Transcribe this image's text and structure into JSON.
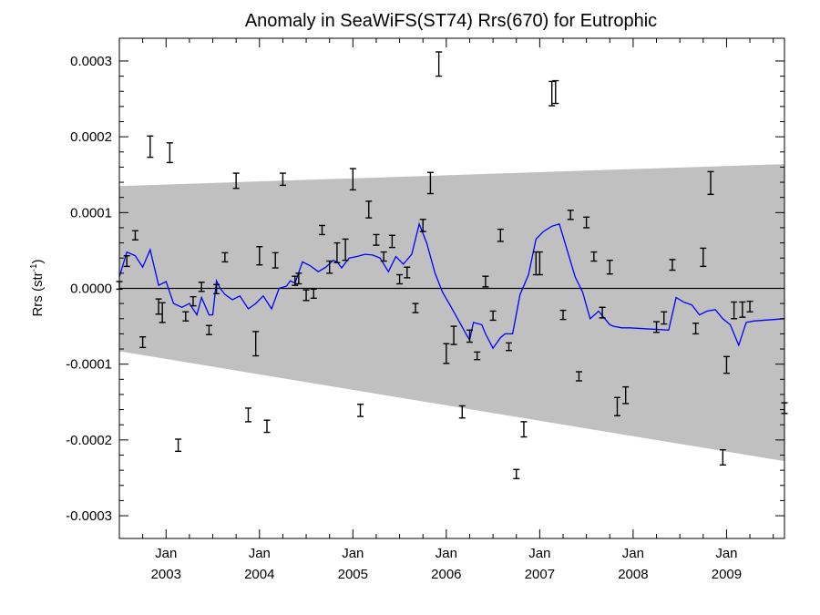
{
  "chart_data": {
    "type": "scatter",
    "title": "Anomaly in SeaWiFS(ST74) Rrs(670) for Eutrophic",
    "ylabel_main": "Rrs (str",
    "ylabel_sup": "-1",
    "ylabel_end": ")",
    "xlim": [
      2002.5,
      2009.62
    ],
    "ylim": [
      -0.00033,
      0.00033
    ],
    "yticks": [
      {
        "value": 0.0003,
        "label": "0.0003"
      },
      {
        "value": 0.0002,
        "label": "0.0002"
      },
      {
        "value": 0.0001,
        "label": "0.0001"
      },
      {
        "value": 0.0,
        "label": "0.0000"
      },
      {
        "value": -0.0001,
        "label": "-0.0001"
      },
      {
        "value": -0.0002,
        "label": "-0.0002"
      },
      {
        "value": -0.0003,
        "label": "-0.0003"
      }
    ],
    "xticks": [
      {
        "value": 2003.0,
        "month": "Jan",
        "year": "2003"
      },
      {
        "value": 2004.0,
        "month": "Jan",
        "year": "2004"
      },
      {
        "value": 2005.0,
        "month": "Jan",
        "year": "2005"
      },
      {
        "value": 2006.0,
        "month": "Jan",
        "year": "2006"
      },
      {
        "value": 2007.0,
        "month": "Jan",
        "year": "2007"
      },
      {
        "value": 2008.0,
        "month": "Jan",
        "year": "2008"
      },
      {
        "value": 2009.0,
        "month": "Jan",
        "year": "2009"
      }
    ],
    "grid": false,
    "colors": {
      "band": "#c0c0c0",
      "line": "#0000ff",
      "points": "#000000",
      "zero_line": "#000000"
    },
    "band": {
      "x": [
        2002.5,
        2009.62
      ],
      "upper": [
        0.000135,
        0.000164
      ],
      "lower": [
        -8.3e-05,
        -0.000228
      ]
    },
    "points": [
      {
        "x": 2002.5,
        "y": 4e-06,
        "err": 5e-06
      },
      {
        "x": 2002.58,
        "y": 3.6e-05,
        "err": 7e-06
      },
      {
        "x": 2002.67,
        "y": 7e-05,
        "err": 6e-06
      },
      {
        "x": 2002.75,
        "y": -7.1e-05,
        "err": 7e-06
      },
      {
        "x": 2002.83,
        "y": 0.000187,
        "err": 1.4e-05
      },
      {
        "x": 2002.92,
        "y": -2.4e-05,
        "err": 1e-05
      },
      {
        "x": 2002.96,
        "y": -3.2e-05,
        "err": 1.3e-05
      },
      {
        "x": 2003.04,
        "y": 0.000179,
        "err": 1.3e-05
      },
      {
        "x": 2003.13,
        "y": -0.000207,
        "err": 8e-06
      },
      {
        "x": 2003.21,
        "y": -3.7e-05,
        "err": 6e-06
      },
      {
        "x": 2003.29,
        "y": -1.7e-05,
        "err": 6e-06
      },
      {
        "x": 2003.38,
        "y": 2e-06,
        "err": 6e-06
      },
      {
        "x": 2003.46,
        "y": -5.5e-05,
        "err": 6e-06
      },
      {
        "x": 2003.54,
        "y": -1e-06,
        "err": 6e-06
      },
      {
        "x": 2003.63,
        "y": 4.1e-05,
        "err": 6e-06
      },
      {
        "x": 2003.75,
        "y": 0.000142,
        "err": 1e-05
      },
      {
        "x": 2003.88,
        "y": -0.000167,
        "err": 9e-06
      },
      {
        "x": 2003.96,
        "y": -7.3e-05,
        "err": 1.6e-05
      },
      {
        "x": 2004.0,
        "y": 4.3e-05,
        "err": 1.2e-05
      },
      {
        "x": 2004.08,
        "y": -0.000182,
        "err": 8e-06
      },
      {
        "x": 2004.17,
        "y": 3.7e-05,
        "err": 1e-05
      },
      {
        "x": 2004.25,
        "y": 0.000144,
        "err": 8e-06
      },
      {
        "x": 2004.38,
        "y": 1e-05,
        "err": 6e-06
      },
      {
        "x": 2004.42,
        "y": 1.3e-05,
        "err": 7e-06
      },
      {
        "x": 2004.5,
        "y": -9e-06,
        "err": 7e-06
      },
      {
        "x": 2004.58,
        "y": -7e-06,
        "err": 6e-06
      },
      {
        "x": 2004.67,
        "y": 7.7e-05,
        "err": 6e-06
      },
      {
        "x": 2004.75,
        "y": 2.8e-05,
        "err": 8e-06
      },
      {
        "x": 2004.83,
        "y": 4.7e-05,
        "err": 1.3e-05
      },
      {
        "x": 2004.92,
        "y": 5.1e-05,
        "err": 1.4e-05
      },
      {
        "x": 2005.0,
        "y": 0.000144,
        "err": 1.4e-05
      },
      {
        "x": 2005.08,
        "y": -0.000161,
        "err": 8e-06
      },
      {
        "x": 2005.17,
        "y": 0.000104,
        "err": 1.1e-05
      },
      {
        "x": 2005.25,
        "y": 6.4e-05,
        "err": 7e-06
      },
      {
        "x": 2005.33,
        "y": 4.2e-05,
        "err": 6e-06
      },
      {
        "x": 2005.42,
        "y": 6.2e-05,
        "err": 8e-06
      },
      {
        "x": 2005.5,
        "y": 1.2e-05,
        "err": 6e-06
      },
      {
        "x": 2005.58,
        "y": 2.1e-05,
        "err": 7e-06
      },
      {
        "x": 2005.67,
        "y": -2.6e-05,
        "err": 6e-06
      },
      {
        "x": 2005.75,
        "y": 8.3e-05,
        "err": 8e-06
      },
      {
        "x": 2005.83,
        "y": 0.000139,
        "err": 1.4e-05
      },
      {
        "x": 2005.92,
        "y": 0.000296,
        "err": 1.6e-05
      },
      {
        "x": 2006.0,
        "y": -8.6e-05,
        "err": 1.3e-05
      },
      {
        "x": 2006.08,
        "y": -6.2e-05,
        "err": 1.2e-05
      },
      {
        "x": 2006.17,
        "y": -0.000163,
        "err": 8e-06
      },
      {
        "x": 2006.25,
        "y": -6.3e-05,
        "err": 8e-06
      },
      {
        "x": 2006.33,
        "y": -8.9e-05,
        "err": 5e-06
      },
      {
        "x": 2006.42,
        "y": 9e-06,
        "err": 7e-06
      },
      {
        "x": 2006.5,
        "y": -3.6e-05,
        "err": 6e-06
      },
      {
        "x": 2006.58,
        "y": 7e-05,
        "err": 8e-06
      },
      {
        "x": 2006.67,
        "y": -7.7e-05,
        "err": 5e-06
      },
      {
        "x": 2006.75,
        "y": -0.000245,
        "err": 6e-06
      },
      {
        "x": 2006.83,
        "y": -0.000186,
        "err": 1e-05
      },
      {
        "x": 2006.96,
        "y": 3.3e-05,
        "err": 1.5e-05
      },
      {
        "x": 2007.0,
        "y": 3.3e-05,
        "err": 1.5e-05
      },
      {
        "x": 2007.13,
        "y": 0.000257,
        "err": 1.6e-05
      },
      {
        "x": 2007.17,
        "y": 0.000259,
        "err": 1.5e-05
      },
      {
        "x": 2007.25,
        "y": -3.5e-05,
        "err": 6e-06
      },
      {
        "x": 2007.33,
        "y": 9.7e-05,
        "err": 6e-06
      },
      {
        "x": 2007.42,
        "y": -0.000116,
        "err": 6e-06
      },
      {
        "x": 2007.5,
        "y": 8.7e-05,
        "err": 7e-06
      },
      {
        "x": 2007.58,
        "y": 4.2e-05,
        "err": 6e-06
      },
      {
        "x": 2007.67,
        "y": -3.2e-05,
        "err": 7e-06
      },
      {
        "x": 2007.75,
        "y": 2.8e-05,
        "err": 9e-06
      },
      {
        "x": 2007.83,
        "y": -0.000156,
        "err": 1.2e-05
      },
      {
        "x": 2007.92,
        "y": -0.000141,
        "err": 1.1e-05
      },
      {
        "x": 2008.25,
        "y": -5.1e-05,
        "err": 7e-06
      },
      {
        "x": 2008.33,
        "y": -3.9e-05,
        "err": 8e-06
      },
      {
        "x": 2008.42,
        "y": 3.1e-05,
        "err": 7e-06
      },
      {
        "x": 2008.67,
        "y": -5.3e-05,
        "err": 7e-06
      },
      {
        "x": 2008.75,
        "y": 4.1e-05,
        "err": 1.2e-05
      },
      {
        "x": 2008.83,
        "y": 0.000139,
        "err": 1.5e-05
      },
      {
        "x": 2008.96,
        "y": -0.000223,
        "err": 1e-05
      },
      {
        "x": 2009.0,
        "y": -0.000101,
        "err": 1.1e-05
      },
      {
        "x": 2009.08,
        "y": -2.9e-05,
        "err": 1.1e-05
      },
      {
        "x": 2009.17,
        "y": -2.8e-05,
        "err": 1e-05
      },
      {
        "x": 2009.25,
        "y": -2.4e-05,
        "err": 7e-06
      },
      {
        "x": 2009.62,
        "y": -0.000158,
        "err": 7e-06
      }
    ],
    "line": {
      "x": [
        2002.5,
        2002.58,
        2002.67,
        2002.75,
        2002.83,
        2002.92,
        2003.0,
        2003.08,
        2003.17,
        2003.25,
        2003.33,
        2003.38,
        2003.46,
        2003.5,
        2003.54,
        2003.58,
        2003.63,
        2003.71,
        2003.79,
        2003.88,
        2003.96,
        2004.04,
        2004.13,
        2004.21,
        2004.29,
        2004.33,
        2004.38,
        2004.46,
        2004.54,
        2004.63,
        2004.71,
        2004.79,
        2004.83,
        2004.88,
        2004.96,
        2005.04,
        2005.13,
        2005.21,
        2005.29,
        2005.38,
        2005.46,
        2005.54,
        2005.63,
        2005.71,
        2005.79,
        2005.88,
        2005.96,
        2006.04,
        2006.13,
        2006.21,
        2006.25,
        2006.29,
        2006.38,
        2006.42,
        2006.5,
        2006.58,
        2006.63,
        2006.71,
        2006.79,
        2006.88,
        2006.96,
        2007.04,
        2007.13,
        2007.21,
        2007.29,
        2007.38,
        2007.46,
        2007.54,
        2007.63,
        2007.71,
        2007.75,
        2007.79,
        2007.88,
        2007.96,
        2008.38,
        2008.46,
        2008.54,
        2008.63,
        2008.71,
        2008.79,
        2008.88,
        2008.96,
        2009.04,
        2009.13,
        2009.21,
        2009.29,
        2009.62
      ],
      "y": [
        1.5e-05,
        4.8e-05,
        4.3e-05,
        2.8e-05,
        5.1e-05,
        4e-06,
        9e-06,
        -2e-05,
        -2.5e-05,
        -2e-05,
        -3.5e-05,
        -1.2e-05,
        -3.5e-05,
        -3.5e-05,
        1e-05,
        0.0,
        -8e-06,
        -1.5e-05,
        -1e-05,
        -2.7e-05,
        -2e-05,
        -1e-05,
        -2.7e-05,
        0.0,
        3e-06,
        1e-05,
        7e-06,
        3.5e-05,
        3e-05,
        2.2e-05,
        2.8e-05,
        3.7e-05,
        3.5e-05,
        2.7e-05,
        4e-05,
        4.2e-05,
        4.5e-05,
        4.4e-05,
        4e-05,
        2.2e-05,
        4.2e-05,
        3.2e-05,
        4.5e-05,
        8.5e-05,
        6e-05,
        2e-05,
        -5e-06,
        -2.2e-05,
        -4.2e-05,
        -6e-05,
        -6.8e-05,
        -4.5e-05,
        -4.8e-05,
        -6e-05,
        -7.9e-05,
        -6.5e-05,
        -6e-05,
        -6e-05,
        -8e-06,
        1.8e-05,
        6.5e-05,
        7.5e-05,
        8.2e-05,
        8.5e-05,
        5.2e-05,
        1.5e-05,
        -5e-06,
        -4e-05,
        -3e-05,
        -4.2e-05,
        -4.8e-05,
        -5e-05,
        -5.2e-05,
        -5.2e-05,
        -5.5e-05,
        -1.2e-05,
        -1.8e-05,
        -2.2e-05,
        -3.5e-05,
        -3e-05,
        -2.8e-05,
        -4e-05,
        -4.8e-05,
        -7.5e-05,
        -4.5e-05,
        -4.3e-05,
        -4e-05
      ]
    }
  }
}
